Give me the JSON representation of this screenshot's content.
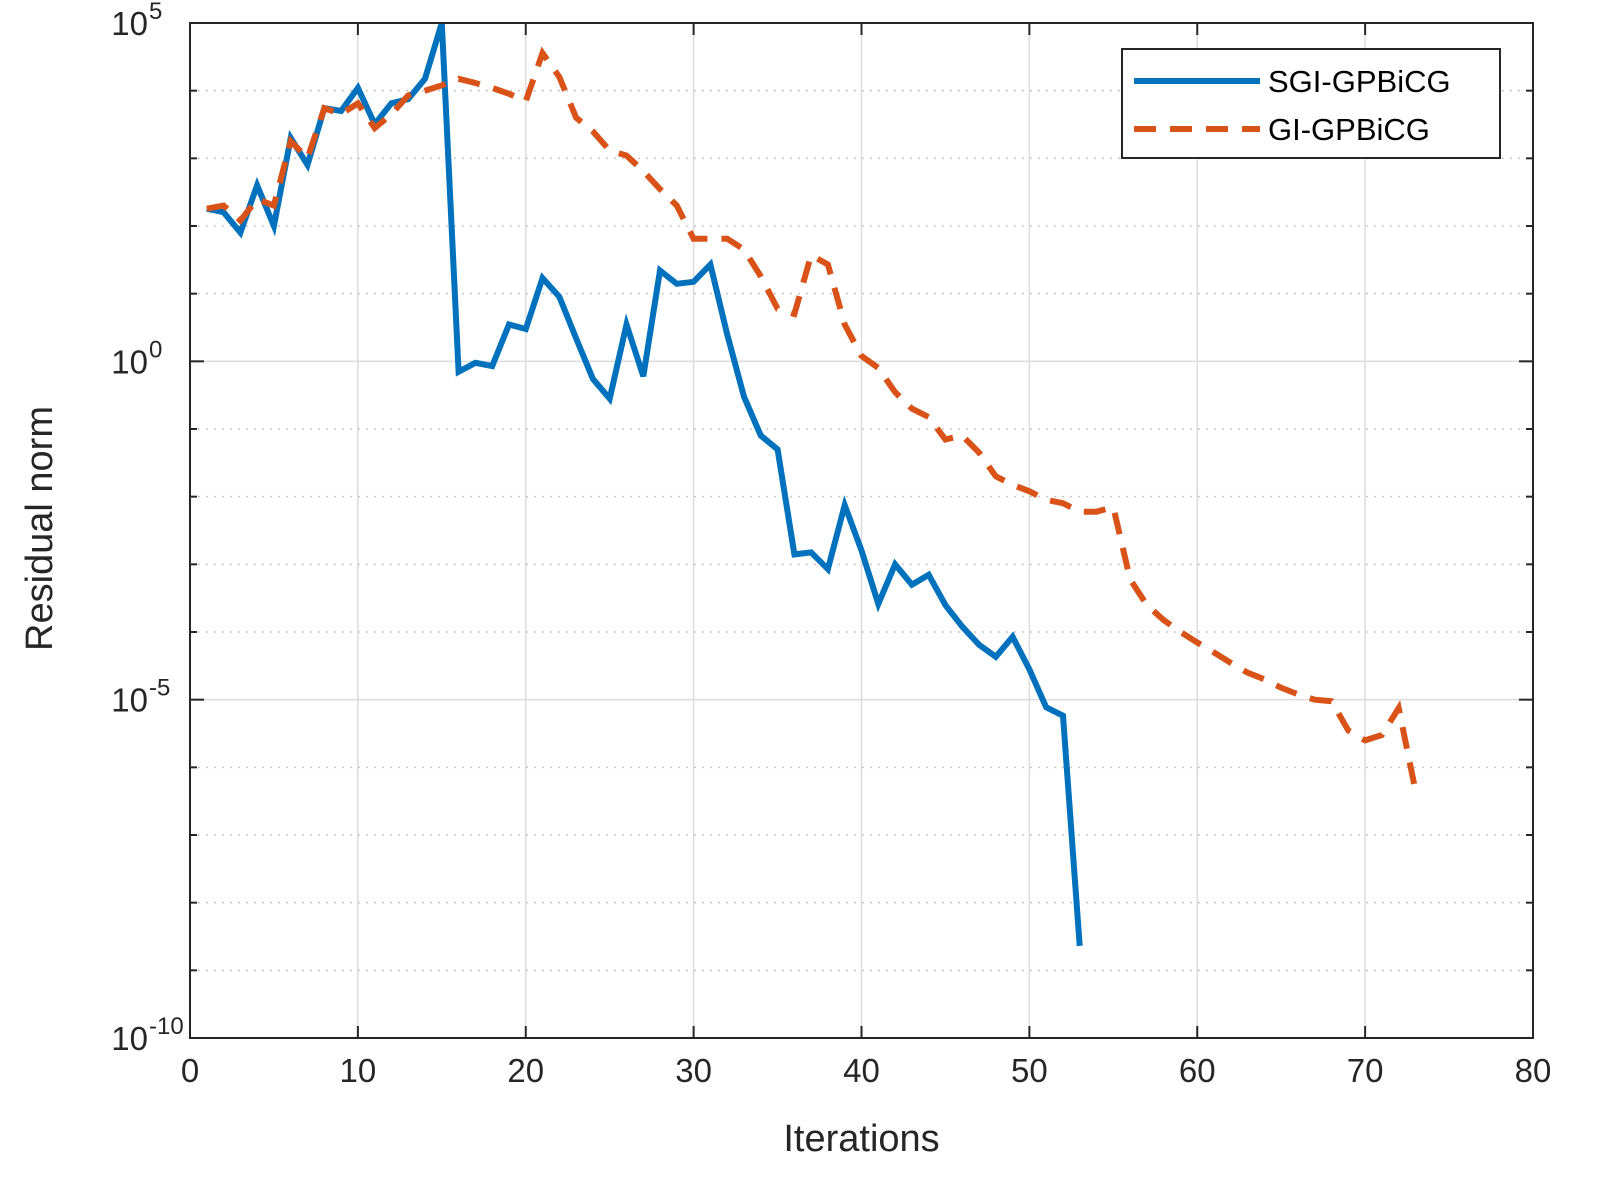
{
  "chart_data": {
    "type": "line",
    "title": "",
    "xlabel": "Iterations",
    "ylabel": "Residual norm",
    "xlim": [
      0,
      80
    ],
    "ylim": [
      1e-10,
      100000.0
    ],
    "yscale": "log",
    "xticks": [
      "0",
      "10",
      "20",
      "30",
      "40",
      "50",
      "60",
      "70",
      "80"
    ],
    "yticks": [
      {
        "base": "10",
        "exp": "-10",
        "value": 1e-10
      },
      {
        "base": "10",
        "exp": "-5",
        "value": 1e-05
      },
      {
        "base": "10",
        "exp": "0",
        "value": 1
      },
      {
        "base": "10",
        "exp": "5",
        "value": 100000.0
      }
    ],
    "grid": true,
    "legend_position": "top-right",
    "series": [
      {
        "name": "SGI-GPBiCG",
        "color": "#0072BD",
        "style": "solid",
        "x": [
          1,
          2,
          3,
          4,
          5,
          6,
          7,
          8,
          9,
          10,
          11,
          12,
          13,
          14,
          15,
          16,
          17,
          18,
          19,
          20,
          21,
          22,
          23,
          24,
          25,
          26,
          27,
          28,
          29,
          30,
          31,
          32,
          33,
          34,
          35,
          36,
          37,
          38,
          39,
          40,
          41,
          42,
          43,
          44,
          45,
          46,
          47,
          48,
          49,
          50,
          51,
          52,
          53
        ],
        "y": [
          180.0,
          160.0,
          80.0,
          400.0,
          100.0,
          2000.0,
          800.0,
          5500.0,
          5000.0,
          11000.0,
          3200.0,
          6500.0,
          7500.0,
          15000.0,
          100000.0,
          0.7,
          0.95,
          0.85,
          3.5,
          3.0,
          17,
          9.0,
          2.2,
          0.55,
          0.28,
          3.5,
          0.6,
          22,
          14,
          15,
          27,
          2.5,
          0.3,
          0.08,
          0.05,
          0.0014,
          0.0015,
          0.00085,
          0.0075,
          0.0016,
          0.00026,
          0.001,
          0.0005,
          0.0007,
          0.00025,
          0.00012,
          6.5e-05,
          4.3e-05,
          8.5e-05,
          2.8e-05,
          7.7e-06,
          5.8e-06,
          2.3e-09
        ]
      },
      {
        "name": "GI-GPBiCG",
        "color": "#D95319",
        "style": "dashed",
        "x": [
          1,
          2,
          3,
          4,
          5,
          6,
          7,
          8,
          9,
          10,
          11,
          12,
          13,
          14,
          15,
          16,
          17,
          18,
          19,
          20,
          21,
          22,
          23,
          24,
          25,
          26,
          27,
          28,
          29,
          30,
          31,
          32,
          33,
          34,
          35,
          36,
          37,
          38,
          39,
          40,
          41,
          42,
          43,
          44,
          45,
          46,
          47,
          48,
          49,
          50,
          51,
          52,
          53,
          54,
          55,
          56,
          57,
          58,
          59,
          60,
          61,
          62,
          63,
          64,
          65,
          66,
          67,
          68,
          69,
          70,
          71,
          72,
          73
        ],
        "y": [
          180.0,
          200.0,
          120.0,
          250.0,
          200.0,
          1800.0,
          1000.0,
          5500.0,
          4500.0,
          6500.0,
          2800.0,
          4500.0,
          8500.0,
          10000.0,
          12000.0,
          15000.0,
          13000.0,
          11000.0,
          9000.0,
          7000.0,
          36000.0,
          16000.0,
          4000.0,
          2500.0,
          1300.0,
          1100.0,
          650.0,
          350.0,
          200.0,
          65.0,
          65.0,
          65.0,
          45.0,
          18.0,
          6.0,
          5.0,
          37.0,
          27.0,
          3.5,
          1.2,
          0.8,
          0.35,
          0.2,
          0.15,
          0.07,
          0.08,
          0.045,
          0.02,
          0.015,
          0.012,
          0.009,
          0.008,
          0.006,
          0.006,
          0.007,
          0.0006,
          0.00025,
          0.00015,
          0.0001,
          7e-05,
          5e-05,
          3.5e-05,
          2.5e-05,
          2e-05,
          1.5e-05,
          1.2e-05,
          1e-05,
          9.5e-06,
          3.5e-06,
          2.5e-06,
          3e-06,
          7.5e-06,
          4.5e-07
        ]
      }
    ]
  }
}
